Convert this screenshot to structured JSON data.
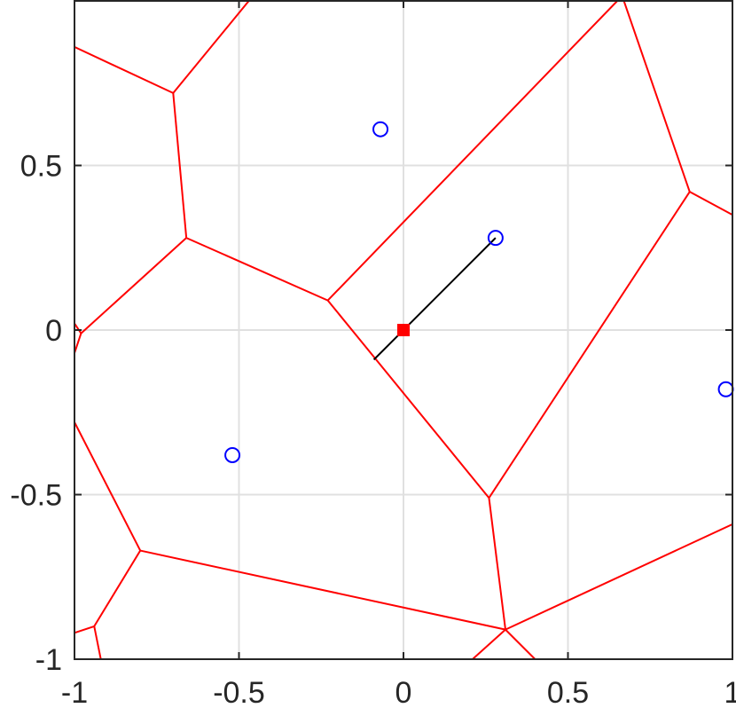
{
  "chart_data": {
    "type": "scatter",
    "title": "",
    "xlabel": "",
    "ylabel": "",
    "xlim": [
      -1,
      1
    ],
    "ylim": [
      -1,
      1
    ],
    "grid": true,
    "colors": {
      "voronoi": "#ff0000",
      "sites": "#0000ff",
      "segment": "#000000",
      "query": "#ff0000",
      "grid": "#e0e0e0",
      "axes": "#262626"
    },
    "x_ticks": [
      {
        "value": -1,
        "label": "-1"
      },
      {
        "value": -0.5,
        "label": "-0.5"
      },
      {
        "value": 0,
        "label": "0"
      },
      {
        "value": 0.5,
        "label": "0.5"
      },
      {
        "value": 1,
        "label": "1"
      }
    ],
    "y_ticks": [
      {
        "value": -1,
        "label": "-1"
      },
      {
        "value": -0.5,
        "label": "-0.5"
      },
      {
        "value": 0,
        "label": "0"
      },
      {
        "value": 0.5,
        "label": "0.5"
      }
    ],
    "sites": [
      {
        "x": -0.07,
        "y": 0.61
      },
      {
        "x": 0.28,
        "y": 0.28
      },
      {
        "x": 0.98,
        "y": -0.18
      },
      {
        "x": -0.52,
        "y": -0.38
      }
    ],
    "query_point": {
      "x": 0,
      "y": 0
    },
    "nearest_segment": [
      [
        -0.09,
        -0.09
      ],
      [
        0.28,
        0.28
      ]
    ],
    "voronoi_edges": [
      [
        [
          -1,
          0.86
        ],
        [
          -0.7,
          0.72
        ]
      ],
      [
        [
          -0.7,
          0.72
        ],
        [
          -0.47,
          1
        ]
      ],
      [
        [
          -0.7,
          0.72
        ],
        [
          -0.66,
          0.28
        ]
      ],
      [
        [
          -0.66,
          0.28
        ],
        [
          -0.23,
          0.09
        ]
      ],
      [
        [
          -0.66,
          0.28
        ],
        [
          -0.98,
          -0.01
        ]
      ],
      [
        [
          -1,
          0.02
        ],
        [
          -0.98,
          -0.01
        ]
      ],
      [
        [
          -0.98,
          -0.01
        ],
        [
          -1,
          -0.07
        ]
      ],
      [
        [
          -0.23,
          0.09
        ],
        [
          0.65,
          1
        ]
      ],
      [
        [
          -0.23,
          0.09
        ],
        [
          0.26,
          -0.51
        ]
      ],
      [
        [
          0.67,
          1
        ],
        [
          0.87,
          0.42
        ]
      ],
      [
        [
          0.87,
          0.42
        ],
        [
          1,
          0.35
        ]
      ],
      [
        [
          0.87,
          0.42
        ],
        [
          0.26,
          -0.51
        ]
      ],
      [
        [
          0.26,
          -0.51
        ],
        [
          0.31,
          -0.91
        ]
      ],
      [
        [
          -1,
          -0.28
        ],
        [
          -0.8,
          -0.67
        ]
      ],
      [
        [
          -0.8,
          -0.67
        ],
        [
          0.31,
          -0.91
        ]
      ],
      [
        [
          -0.8,
          -0.67
        ],
        [
          -0.94,
          -0.9
        ]
      ],
      [
        [
          -0.94,
          -0.9
        ],
        [
          -1,
          -0.92
        ]
      ],
      [
        [
          -0.94,
          -0.9
        ],
        [
          -0.92,
          -1
        ]
      ],
      [
        [
          0.31,
          -0.91
        ],
        [
          1,
          -0.59
        ]
      ],
      [
        [
          0.31,
          -0.91
        ],
        [
          0.21,
          -1
        ]
      ],
      [
        [
          0.31,
          -0.91
        ],
        [
          0.4,
          -1
        ]
      ]
    ]
  }
}
